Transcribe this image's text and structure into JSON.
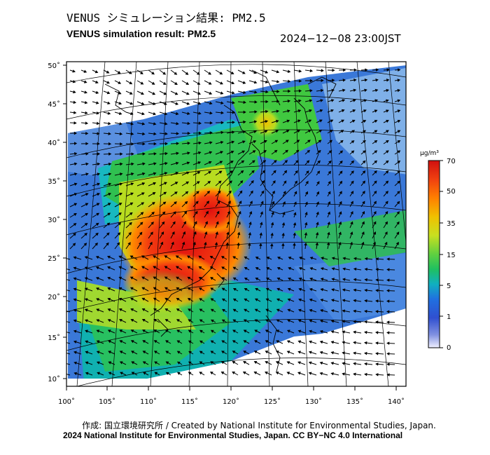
{
  "title_jp": "VENUS シミュレーション結果: PM2.5",
  "title_en": "VENUS simulation result: PM2.5",
  "datetime": "2024−12−08 23:00JST",
  "lat_labels": [
    "50˚",
    "45˚",
    "40˚",
    "35˚",
    "30˚",
    "25˚",
    "20˚",
    "15˚",
    "10˚"
  ],
  "lon_labels": [
    "100˚",
    "105˚",
    "110˚",
    "115˚",
    "120˚",
    "125˚",
    "130˚",
    "135˚",
    "140˚"
  ],
  "colorbar": {
    "unit": "μg/m³",
    "ticks": [
      "70",
      "50",
      "35",
      "15",
      "5",
      "1",
      "0"
    ],
    "colors": [
      "#d01010",
      "#f04010",
      "#ff8000",
      "#f0c000",
      "#c8e020",
      "#60d040",
      "#20c060",
      "#10b0c0",
      "#2070e0",
      "#3050d0",
      "#8090e0",
      "#f0f0ff"
    ]
  },
  "credit_line1": "作成: 国立環境研究所 / Created by National Institute for Environmental Studies, Japan.",
  "credit_line2": "2024 National Institute for Environmental Studies, Japan. CC BY−NC 4.0 International"
}
